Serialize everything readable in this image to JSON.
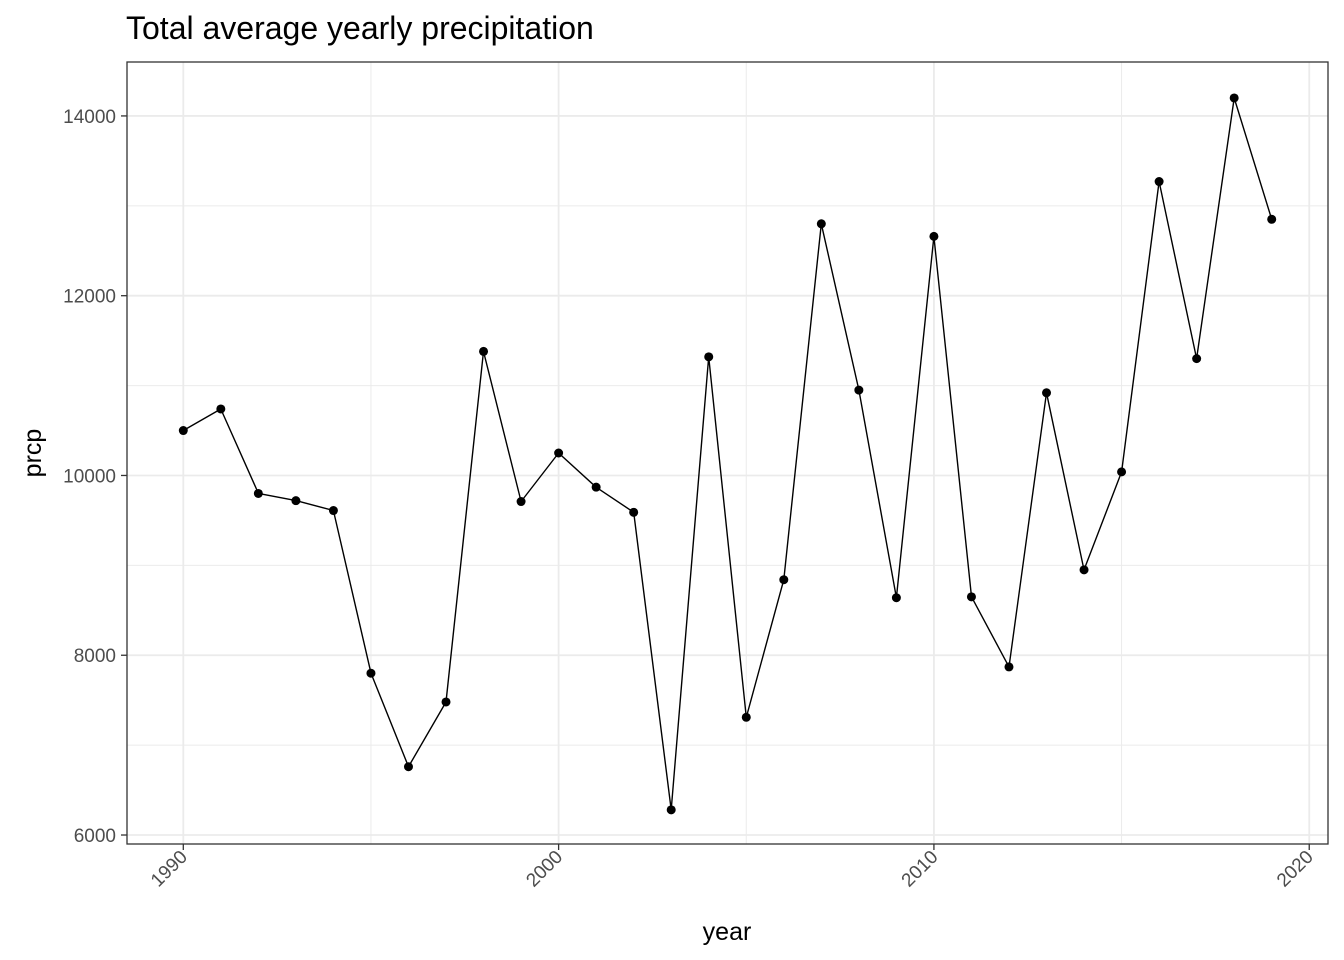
{
  "chart_data": {
    "type": "line",
    "title": "Total average yearly precipitation",
    "xlabel": "year",
    "ylabel": "prcp",
    "xlim": [
      1988.5,
      2020.5
    ],
    "ylim": [
      5900,
      14600
    ],
    "x_ticks": [
      1990,
      2000,
      2010,
      2020
    ],
    "y_ticks": [
      6000,
      8000,
      10000,
      12000,
      14000
    ],
    "x_tick_labels": [
      "1990",
      "2000",
      "2010",
      "2020"
    ],
    "y_tick_labels": [
      "6000",
      "8000",
      "10000",
      "12000",
      "14000"
    ],
    "x_tick_rotation": -45,
    "grid": true,
    "legend": "none",
    "markers": true,
    "line_color": "#000000",
    "grid_color": "#ebebeb",
    "series": [
      {
        "x": [
          1990,
          1991,
          1992,
          1993,
          1994,
          1995,
          1996,
          1997,
          1998,
          1999,
          2000,
          2001,
          2002,
          2003,
          2004,
          2005,
          2006,
          2007,
          2008,
          2009,
          2010,
          2011,
          2012,
          2013,
          2014,
          2015,
          2016,
          2017,
          2018,
          2019
        ],
        "y": [
          10500,
          10740,
          9800,
          9720,
          9610,
          7800,
          6760,
          7480,
          11380,
          9710,
          10250,
          9870,
          9590,
          6280,
          11320,
          7310,
          8840,
          12800,
          10950,
          8640,
          12660,
          8650,
          7870,
          10920,
          8950,
          10040,
          13270,
          11300,
          14200,
          12850
        ]
      }
    ]
  }
}
